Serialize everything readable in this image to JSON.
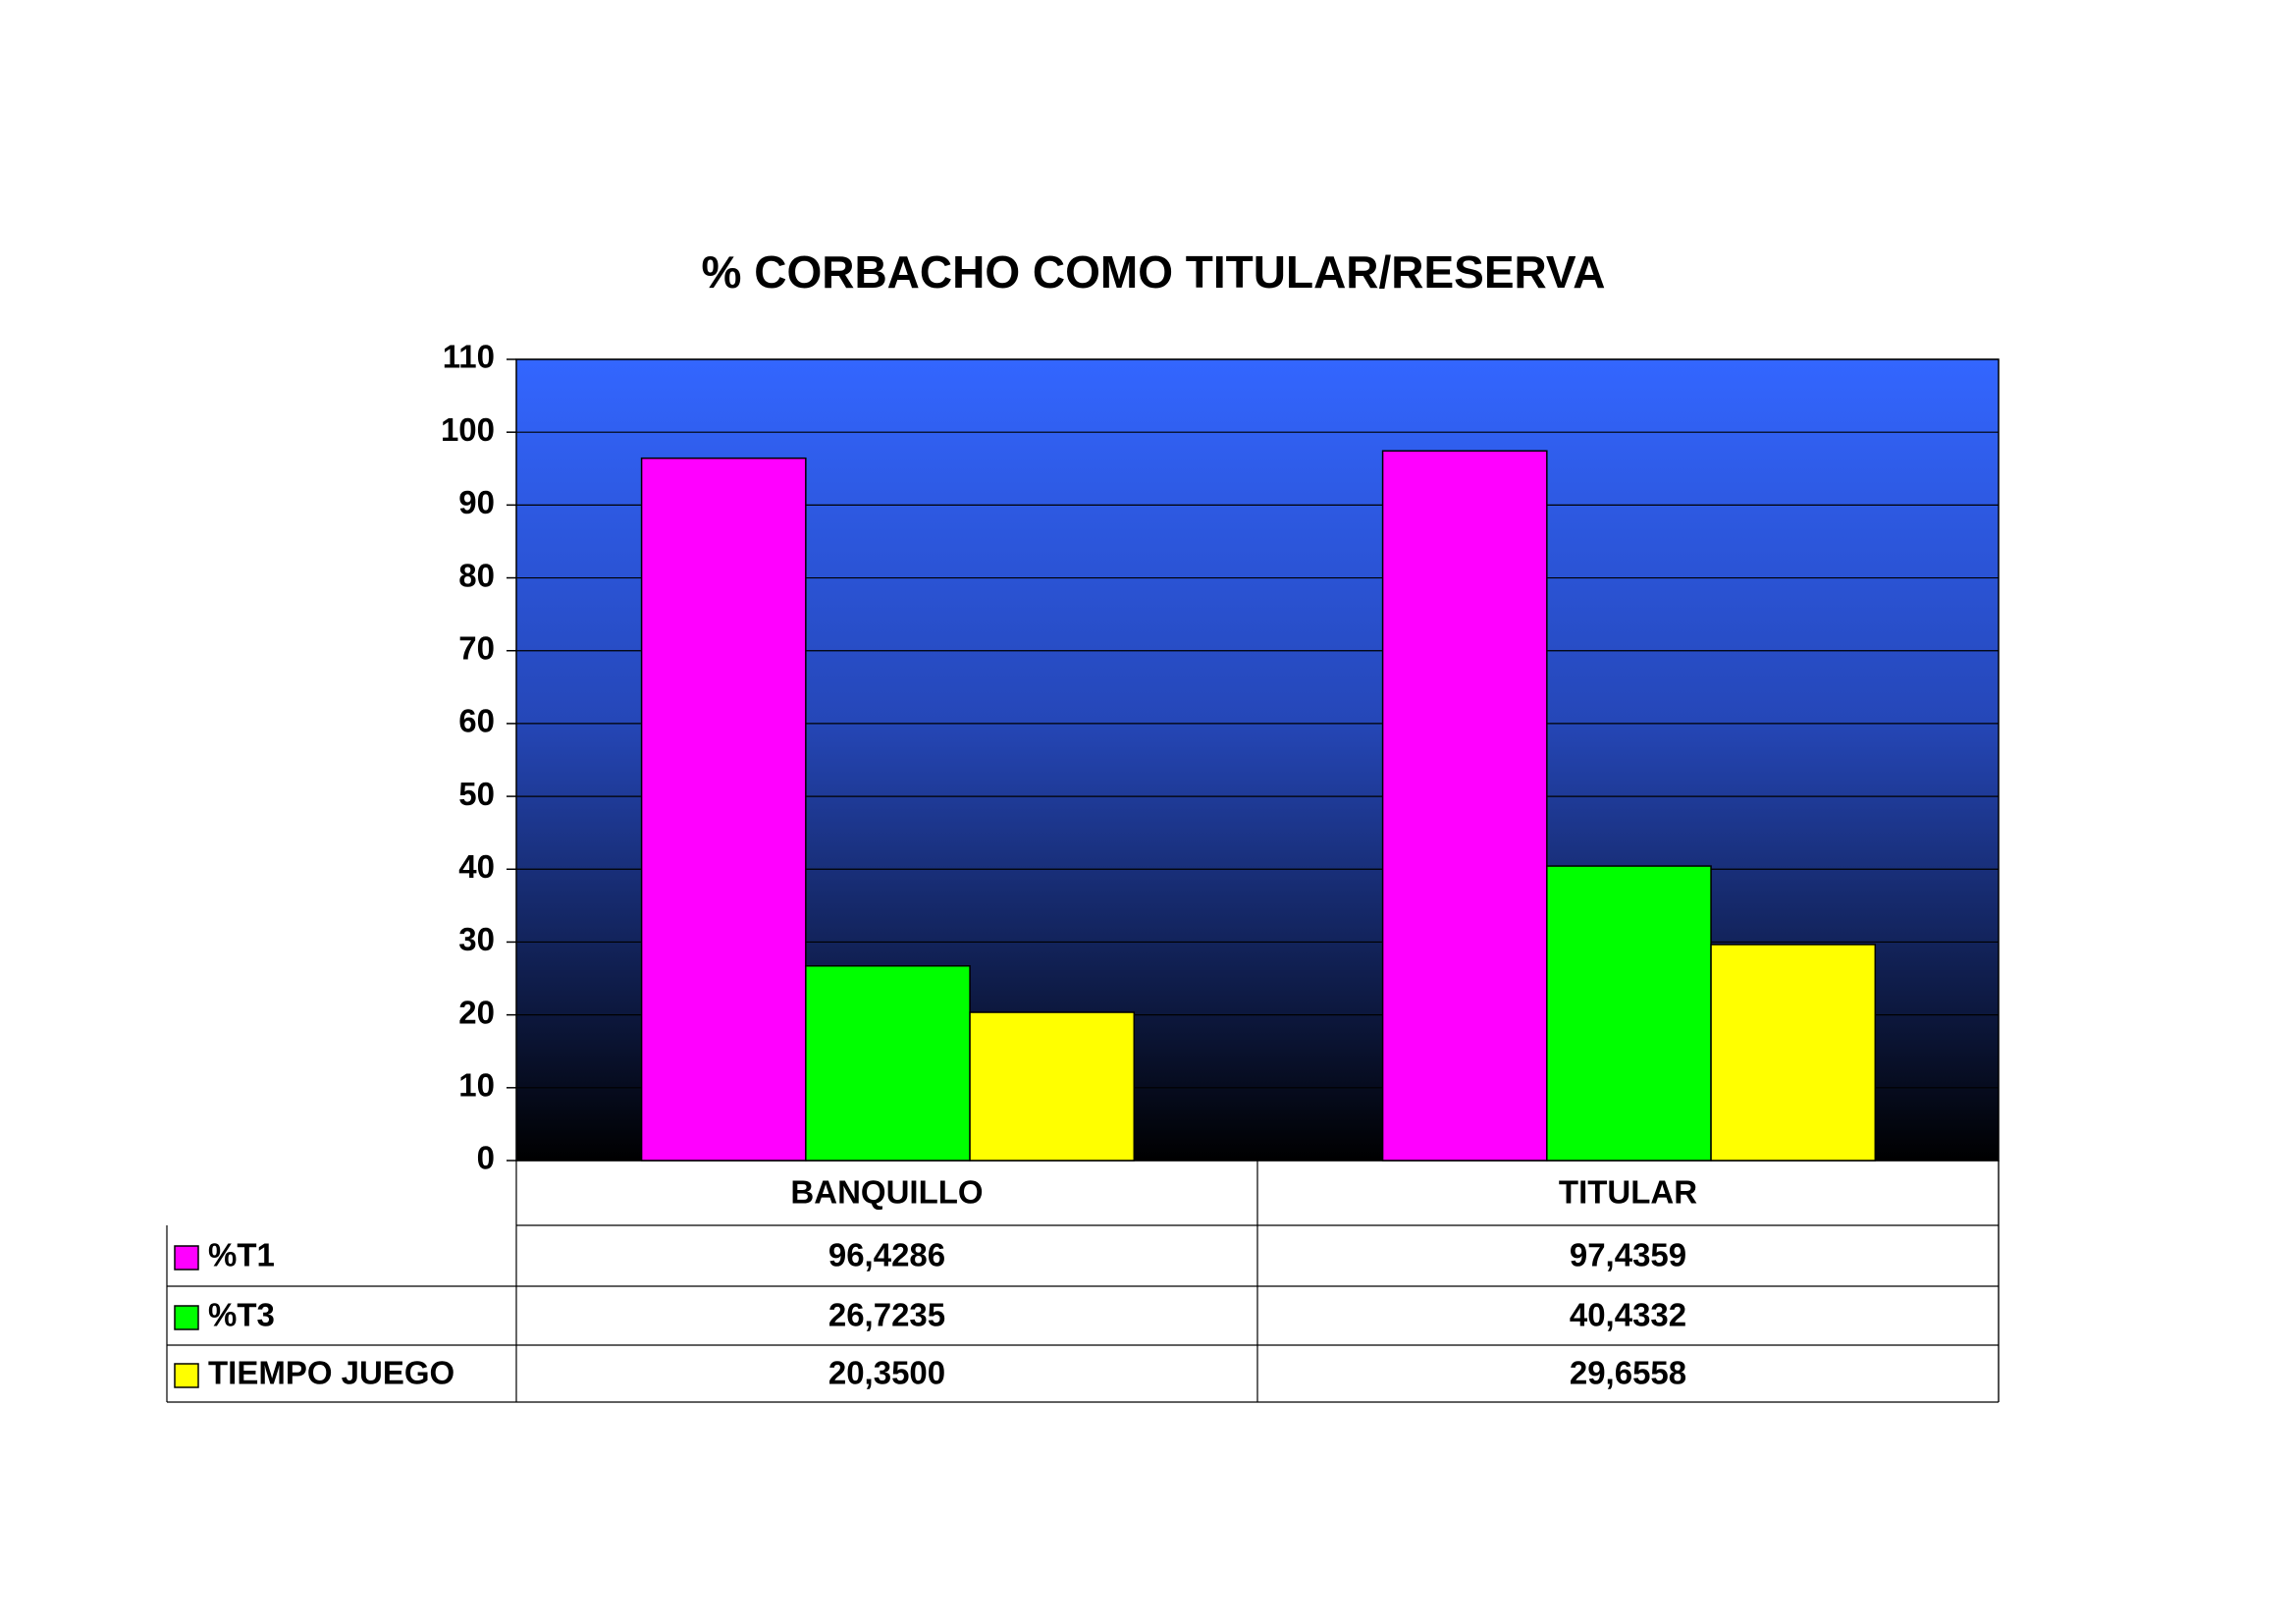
{
  "chart_data": {
    "type": "bar",
    "title": "% CORBACHO COMO TITULAR/RESERVA",
    "categories": [
      "BANQUILLO",
      "TITULAR"
    ],
    "series": [
      {
        "name": "%T1",
        "color": "#ff00ff",
        "values": [
          96.4286,
          97.4359
        ],
        "value_labels": [
          "96,4286",
          "97,4359"
        ]
      },
      {
        "name": "%T3",
        "color": "#00ff00",
        "values": [
          26.7235,
          40.4332
        ],
        "value_labels": [
          "26,7235",
          "40,4332"
        ]
      },
      {
        "name": "TIEMPO JUEGO",
        "color": "#ffff00",
        "values": [
          20.35,
          29.6558
        ],
        "value_labels": [
          "20,3500",
          "29,6558"
        ]
      }
    ],
    "ylim": [
      0,
      110
    ],
    "yticks": [
      0,
      10,
      20,
      30,
      40,
      50,
      60,
      70,
      80,
      90,
      100,
      110
    ],
    "grid": true
  }
}
